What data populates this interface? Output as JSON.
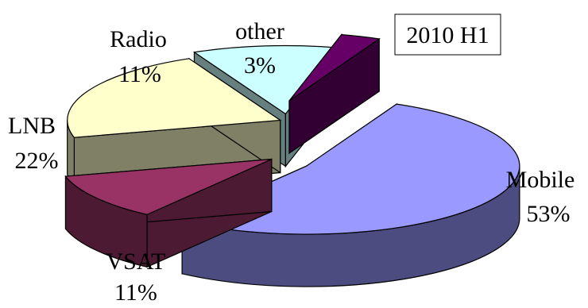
{
  "chart_data": {
    "type": "pie",
    "style": "3d-exploded",
    "title": "2010 H1",
    "categories": [
      "Mobile",
      "VSAT",
      "LNB",
      "Radio",
      "other"
    ],
    "values": [
      53,
      11,
      22,
      11,
      3
    ],
    "labels": [
      {
        "name": "Mobile",
        "pct": "53%"
      },
      {
        "name": "VSAT",
        "pct": "11%"
      },
      {
        "name": "LNB",
        "pct": "22%"
      },
      {
        "name": "Radio",
        "pct": "11%"
      },
      {
        "name": "other",
        "pct": "3%"
      }
    ],
    "colors": {
      "Mobile": {
        "top": "#9999ff",
        "side": "#4c4c80"
      },
      "VSAT": {
        "top": "#993366",
        "side": "#4d1a33"
      },
      "LNB": {
        "top": "#ffffcc",
        "side": "#808066"
      },
      "Radio": {
        "top": "#ccffff",
        "side": "#668080"
      },
      "other": {
        "top": "#660066",
        "side": "#330033"
      }
    },
    "legend": "none"
  }
}
